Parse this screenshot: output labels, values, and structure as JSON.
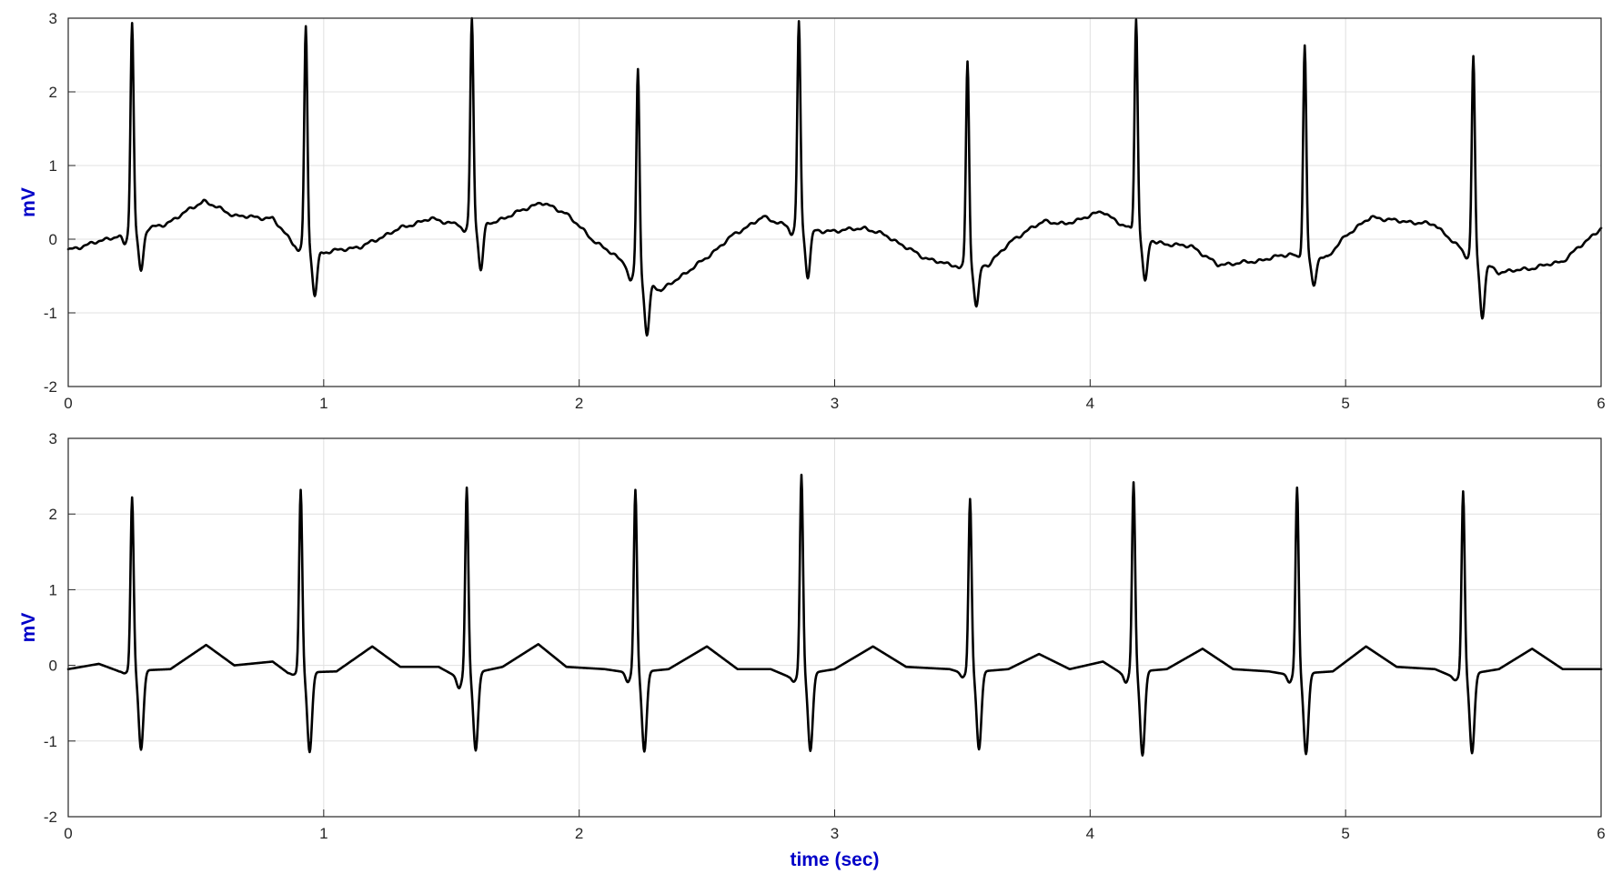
{
  "chart_data": [
    {
      "type": "line",
      "title": "",
      "xlabel": "",
      "ylabel": "mV",
      "xlim": [
        0,
        6
      ],
      "ylim": [
        -2,
        3
      ],
      "xticks": [
        "0",
        "1",
        "2",
        "3",
        "4",
        "5",
        "6"
      ],
      "yticks": [
        "-2",
        "-1",
        "0",
        "1",
        "2",
        "3"
      ],
      "grid": true,
      "line_color": "#000000",
      "series": [
        {
          "beats": [
            {
              "r_time": 0.25,
              "r_amp": 2.95,
              "s_amp": -0.45,
              "q_amp": -0.05,
              "baseline": 0.0
            },
            {
              "r_time": 0.93,
              "r_amp": 2.88,
              "s_amp": -0.72,
              "q_amp": -0.18,
              "baseline": 0.25
            },
            {
              "r_time": 1.58,
              "r_amp": 3.0,
              "s_amp": -0.42,
              "q_amp": 0.1,
              "baseline": 0.3
            },
            {
              "r_time": 2.23,
              "r_amp": 2.3,
              "s_amp": -1.22,
              "q_amp": -0.65,
              "baseline": -0.2
            },
            {
              "r_time": 2.86,
              "r_amp": 2.95,
              "s_amp": -0.48,
              "q_amp": 0.05,
              "baseline": 0.3
            },
            {
              "r_time": 3.52,
              "r_amp": 2.42,
              "s_amp": -0.92,
              "q_amp": -0.38,
              "baseline": -0.3
            },
            {
              "r_time": 4.18,
              "r_amp": 3.0,
              "s_amp": -0.52,
              "q_amp": 0.1,
              "baseline": 0.3
            },
            {
              "r_time": 4.84,
              "r_amp": 2.62,
              "s_amp": -0.62,
              "q_amp": -0.25,
              "baseline": -0.25
            },
            {
              "r_time": 5.5,
              "r_amp": 2.48,
              "s_amp": -0.98,
              "q_amp": -0.3,
              "baseline": 0.2
            }
          ],
          "baseline_points": [
            [
              0.0,
              -0.15
            ],
            [
              0.1,
              -0.05
            ],
            [
              0.2,
              0.05
            ],
            [
              0.38,
              0.2
            ],
            [
              0.53,
              0.52
            ],
            [
              0.65,
              0.32
            ],
            [
              0.8,
              0.28
            ],
            [
              0.88,
              -0.05
            ],
            [
              1.0,
              -0.18
            ],
            [
              1.15,
              -0.1
            ],
            [
              1.3,
              0.15
            ],
            [
              1.42,
              0.28
            ],
            [
              1.52,
              0.2
            ],
            [
              1.66,
              0.22
            ],
            [
              1.85,
              0.5
            ],
            [
              1.95,
              0.35
            ],
            [
              2.05,
              0.0
            ],
            [
              2.15,
              -0.25
            ],
            [
              2.32,
              -0.7
            ],
            [
              2.5,
              -0.25
            ],
            [
              2.6,
              0.05
            ],
            [
              2.72,
              0.3
            ],
            [
              2.8,
              0.2
            ],
            [
              2.95,
              0.1
            ],
            [
              3.12,
              0.15
            ],
            [
              3.2,
              0.05
            ],
            [
              3.35,
              -0.25
            ],
            [
              3.45,
              -0.35
            ],
            [
              3.6,
              -0.35
            ],
            [
              3.7,
              0.0
            ],
            [
              3.82,
              0.25
            ],
            [
              3.9,
              0.2
            ],
            [
              4.05,
              0.38
            ],
            [
              4.12,
              0.2
            ],
            [
              4.26,
              -0.05
            ],
            [
              4.4,
              -0.1
            ],
            [
              4.5,
              -0.35
            ],
            [
              4.65,
              -0.3
            ],
            [
              4.78,
              -0.2
            ],
            [
              4.93,
              -0.25
            ],
            [
              5.0,
              0.05
            ],
            [
              5.1,
              0.3
            ],
            [
              5.2,
              0.25
            ],
            [
              5.35,
              0.2
            ],
            [
              5.44,
              -0.1
            ],
            [
              5.6,
              -0.45
            ],
            [
              5.72,
              -0.4
            ],
            [
              5.85,
              -0.3
            ],
            [
              6.0,
              0.15
            ]
          ]
        }
      ]
    },
    {
      "type": "line",
      "title": "",
      "xlabel": "time (sec)",
      "ylabel": "mV",
      "xlim": [
        0,
        6
      ],
      "ylim": [
        -2,
        3
      ],
      "xticks": [
        "0",
        "1",
        "2",
        "3",
        "4",
        "5",
        "6"
      ],
      "yticks": [
        "-2",
        "-1",
        "0",
        "1",
        "2",
        "3"
      ],
      "grid": true,
      "line_color": "#000000",
      "series": [
        {
          "beats": [
            {
              "r_time": 0.25,
              "r_amp": 2.22,
              "s_amp": -1.12,
              "q_amp": -0.1,
              "baseline": -0.1
            },
            {
              "r_time": 0.91,
              "r_amp": 2.32,
              "s_amp": -1.15,
              "q_amp": -0.12,
              "baseline": -0.05
            },
            {
              "r_time": 1.56,
              "r_amp": 2.35,
              "s_amp": -1.15,
              "q_amp": -0.28,
              "baseline": -0.05
            },
            {
              "r_time": 2.22,
              "r_amp": 2.32,
              "s_amp": -1.15,
              "q_amp": -0.22,
              "baseline": -0.05
            },
            {
              "r_time": 2.87,
              "r_amp": 2.52,
              "s_amp": -1.15,
              "q_amp": -0.2,
              "baseline": -0.05
            },
            {
              "r_time": 3.53,
              "r_amp": 2.2,
              "s_amp": -1.12,
              "q_amp": -0.15,
              "baseline": -0.05
            },
            {
              "r_time": 4.17,
              "r_amp": 2.42,
              "s_amp": -1.2,
              "q_amp": -0.22,
              "baseline": -0.05
            },
            {
              "r_time": 4.81,
              "r_amp": 2.35,
              "s_amp": -1.18,
              "q_amp": -0.22,
              "baseline": -0.05
            },
            {
              "r_time": 5.46,
              "r_amp": 2.3,
              "s_amp": -1.18,
              "q_amp": -0.18,
              "baseline": -0.05
            }
          ],
          "baseline_points": [
            [
              0.0,
              -0.05
            ],
            [
              0.12,
              0.02
            ],
            [
              0.2,
              -0.08
            ],
            [
              0.4,
              -0.05
            ],
            [
              0.54,
              0.27
            ],
            [
              0.65,
              0.0
            ],
            [
              0.8,
              0.05
            ],
            [
              0.86,
              -0.1
            ],
            [
              1.05,
              -0.08
            ],
            [
              1.19,
              0.25
            ],
            [
              1.3,
              -0.02
            ],
            [
              1.45,
              -0.02
            ],
            [
              1.52,
              -0.15
            ],
            [
              1.7,
              -0.02
            ],
            [
              1.84,
              0.28
            ],
            [
              1.95,
              -0.02
            ],
            [
              2.1,
              -0.05
            ],
            [
              2.2,
              -0.1
            ],
            [
              2.35,
              -0.05
            ],
            [
              2.5,
              0.25
            ],
            [
              2.62,
              -0.05
            ],
            [
              2.75,
              -0.05
            ],
            [
              2.82,
              -0.15
            ],
            [
              3.0,
              -0.05
            ],
            [
              3.15,
              0.25
            ],
            [
              3.28,
              -0.02
            ],
            [
              3.45,
              -0.05
            ],
            [
              3.5,
              -0.1
            ],
            [
              3.68,
              -0.05
            ],
            [
              3.8,
              0.15
            ],
            [
              3.92,
              -0.05
            ],
            [
              4.05,
              0.05
            ],
            [
              4.12,
              -0.1
            ],
            [
              4.3,
              -0.05
            ],
            [
              4.44,
              0.22
            ],
            [
              4.56,
              -0.05
            ],
            [
              4.7,
              -0.08
            ],
            [
              4.77,
              -0.12
            ],
            [
              4.95,
              -0.08
            ],
            [
              5.08,
              0.25
            ],
            [
              5.2,
              -0.02
            ],
            [
              5.35,
              -0.05
            ],
            [
              5.42,
              -0.15
            ],
            [
              5.6,
              -0.05
            ],
            [
              5.73,
              0.22
            ],
            [
              5.85,
              -0.05
            ],
            [
              6.0,
              -0.05
            ]
          ]
        }
      ]
    }
  ]
}
